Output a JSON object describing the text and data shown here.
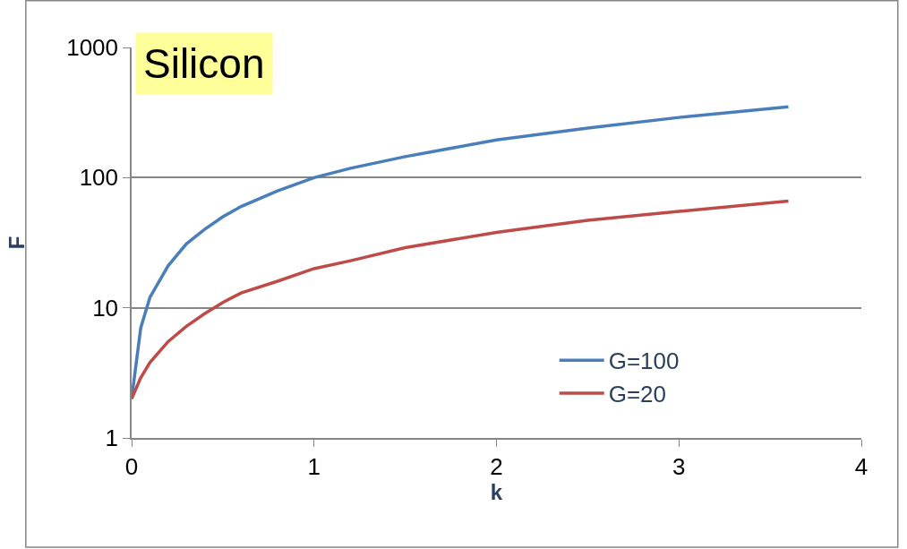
{
  "chart_data": {
    "type": "line",
    "title": "Silicon",
    "xlabel": "k",
    "ylabel": "F",
    "log": "y",
    "grid": "y",
    "legend": "bottom right",
    "marker": "none",
    "line_style": "solid",
    "xlim": [
      0,
      4
    ],
    "xticks": [
      0,
      1,
      2,
      3,
      4
    ],
    "ylim": [
      1,
      1000
    ],
    "yticks": [
      1,
      10,
      100,
      1000
    ],
    "x": [
      0,
      0.05,
      0.1,
      0.2,
      0.3,
      0.4,
      0.5,
      0.6,
      0.8,
      1,
      1.2,
      1.5,
      2,
      2.5,
      3,
      3.6
    ],
    "series": [
      {
        "name": "G=100",
        "color": "#4a7ebb",
        "values": [
          2,
          7,
          12,
          21,
          31,
          40,
          50,
          60,
          79,
          100,
          118,
          145,
          195,
          240,
          290,
          350
        ]
      },
      {
        "name": "G=20",
        "color": "#be4b48",
        "values": [
          2,
          2.9,
          3.8,
          5.5,
          7.2,
          9,
          11,
          13,
          16,
          20,
          23,
          29,
          38,
          47,
          55,
          66
        ]
      }
    ]
  }
}
